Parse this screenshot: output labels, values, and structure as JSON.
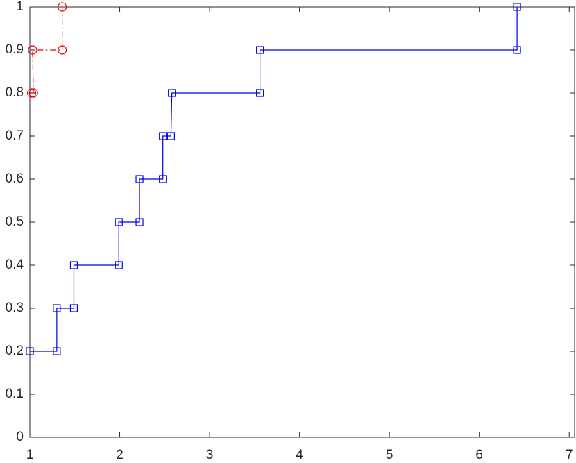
{
  "chart_data": {
    "type": "line",
    "xlim": [
      1,
      7.06
    ],
    "ylim": [
      0,
      1
    ],
    "xticks": [
      1,
      2,
      3,
      4,
      5,
      6,
      7
    ],
    "yticks": [
      0,
      0.1,
      0.2,
      0.3,
      0.4,
      0.5,
      0.6,
      0.7,
      0.8,
      0.9,
      1
    ],
    "series": [
      {
        "color": "#0000e6",
        "marker": "square",
        "dash": "solid",
        "x": [
          1.0,
          1.3,
          1.3,
          1.49,
          1.49,
          1.99,
          1.99,
          2.22,
          2.22,
          2.48,
          2.48,
          2.57,
          2.58,
          3.56,
          3.56,
          6.42,
          6.42
        ],
        "values": [
          0.2,
          0.2,
          0.3,
          0.3,
          0.4,
          0.4,
          0.5,
          0.5,
          0.6,
          0.6,
          0.7,
          0.7,
          0.8,
          0.8,
          0.9,
          0.9,
          1.0
        ]
      },
      {
        "color": "#e60000",
        "marker": "circle",
        "dash": "dashdot",
        "x": [
          1.02,
          1.04,
          1.03,
          1.36,
          1.36
        ],
        "values": [
          0.8,
          0.8,
          0.9,
          0.9,
          1.0
        ]
      }
    ]
  }
}
